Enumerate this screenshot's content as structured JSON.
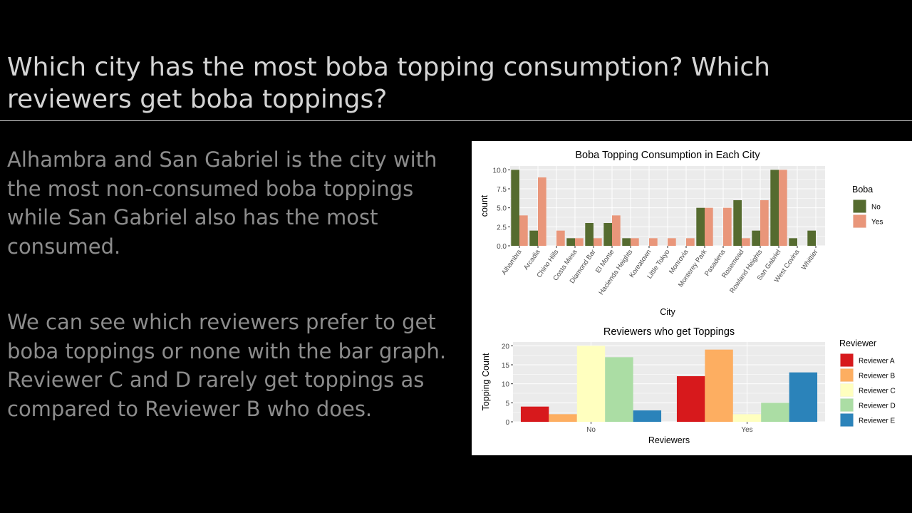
{
  "slide": {
    "title": "Which city has the most boba topping consumption? Which reviewers get boba toppings?",
    "paragraph1": "Alhambra and San Gabriel is the city with the most non-consumed boba toppings while San Gabriel also has the most consumed.",
    "paragraph2": "We can see which reviewers prefer to get boba toppings or none with the bar graph.  Reviewer C and D rarely get toppings as compared to Reviewer B who does."
  },
  "chart_data": [
    {
      "type": "bar",
      "title": "Boba Topping Consumption in Each City",
      "xlabel": "City",
      "ylabel": "count",
      "ylim": [
        0,
        10.5
      ],
      "yticks": [
        "0.0",
        "2.5",
        "5.0",
        "7.5",
        "10.0"
      ],
      "ytick_values": [
        0,
        2.5,
        5,
        7.5,
        10
      ],
      "categories": [
        "Alhambra",
        "Arcadia",
        "Chino Hills",
        "Costa Mesa",
        "Diamond Bar",
        "El Monte",
        "Hacienda Heights",
        "Koreatown",
        "Little Tokyo",
        "Monrovia",
        "Monterey Park",
        "Pasadena",
        "Rosemead",
        "Rowland Heights",
        "San Gabriel",
        "West Covina",
        "Whittier"
      ],
      "legend_title": "Boba",
      "legend_position": "right",
      "grid": true,
      "series": [
        {
          "name": "No",
          "color": "#556b2f",
          "values": [
            10,
            2,
            null,
            1,
            3,
            3,
            1,
            null,
            null,
            null,
            5,
            null,
            6,
            2,
            10,
            1,
            2
          ]
        },
        {
          "name": "Yes",
          "color": "#e9967a",
          "values": [
            4,
            9,
            2,
            1,
            1,
            4,
            1,
            1,
            1,
            1,
            5,
            5,
            1,
            6,
            10,
            null,
            null
          ]
        }
      ]
    },
    {
      "type": "bar",
      "title": "Reviewers who get Toppings",
      "xlabel": "Reviewers",
      "ylabel": "Topping Count",
      "ylim": [
        0,
        21
      ],
      "yticks": [
        "0",
        "5",
        "10",
        "15",
        "20"
      ],
      "ytick_values": [
        0,
        5,
        10,
        15,
        20
      ],
      "categories": [
        "No",
        "Yes"
      ],
      "legend_title": "Reviewer",
      "legend_position": "right",
      "grid": true,
      "series": [
        {
          "name": "Reviewer A",
          "color": "#d7191c",
          "values": [
            4,
            12
          ]
        },
        {
          "name": "Reviewer B",
          "color": "#fdae61",
          "values": [
            2,
            19
          ]
        },
        {
          "name": "Reviewer C",
          "color": "#ffffbf",
          "values": [
            20,
            2
          ]
        },
        {
          "name": "Reviewer D",
          "color": "#abdda4",
          "values": [
            17,
            5
          ]
        },
        {
          "name": "Reviewer E",
          "color": "#2b83ba",
          "values": [
            3,
            13
          ]
        }
      ]
    }
  ]
}
